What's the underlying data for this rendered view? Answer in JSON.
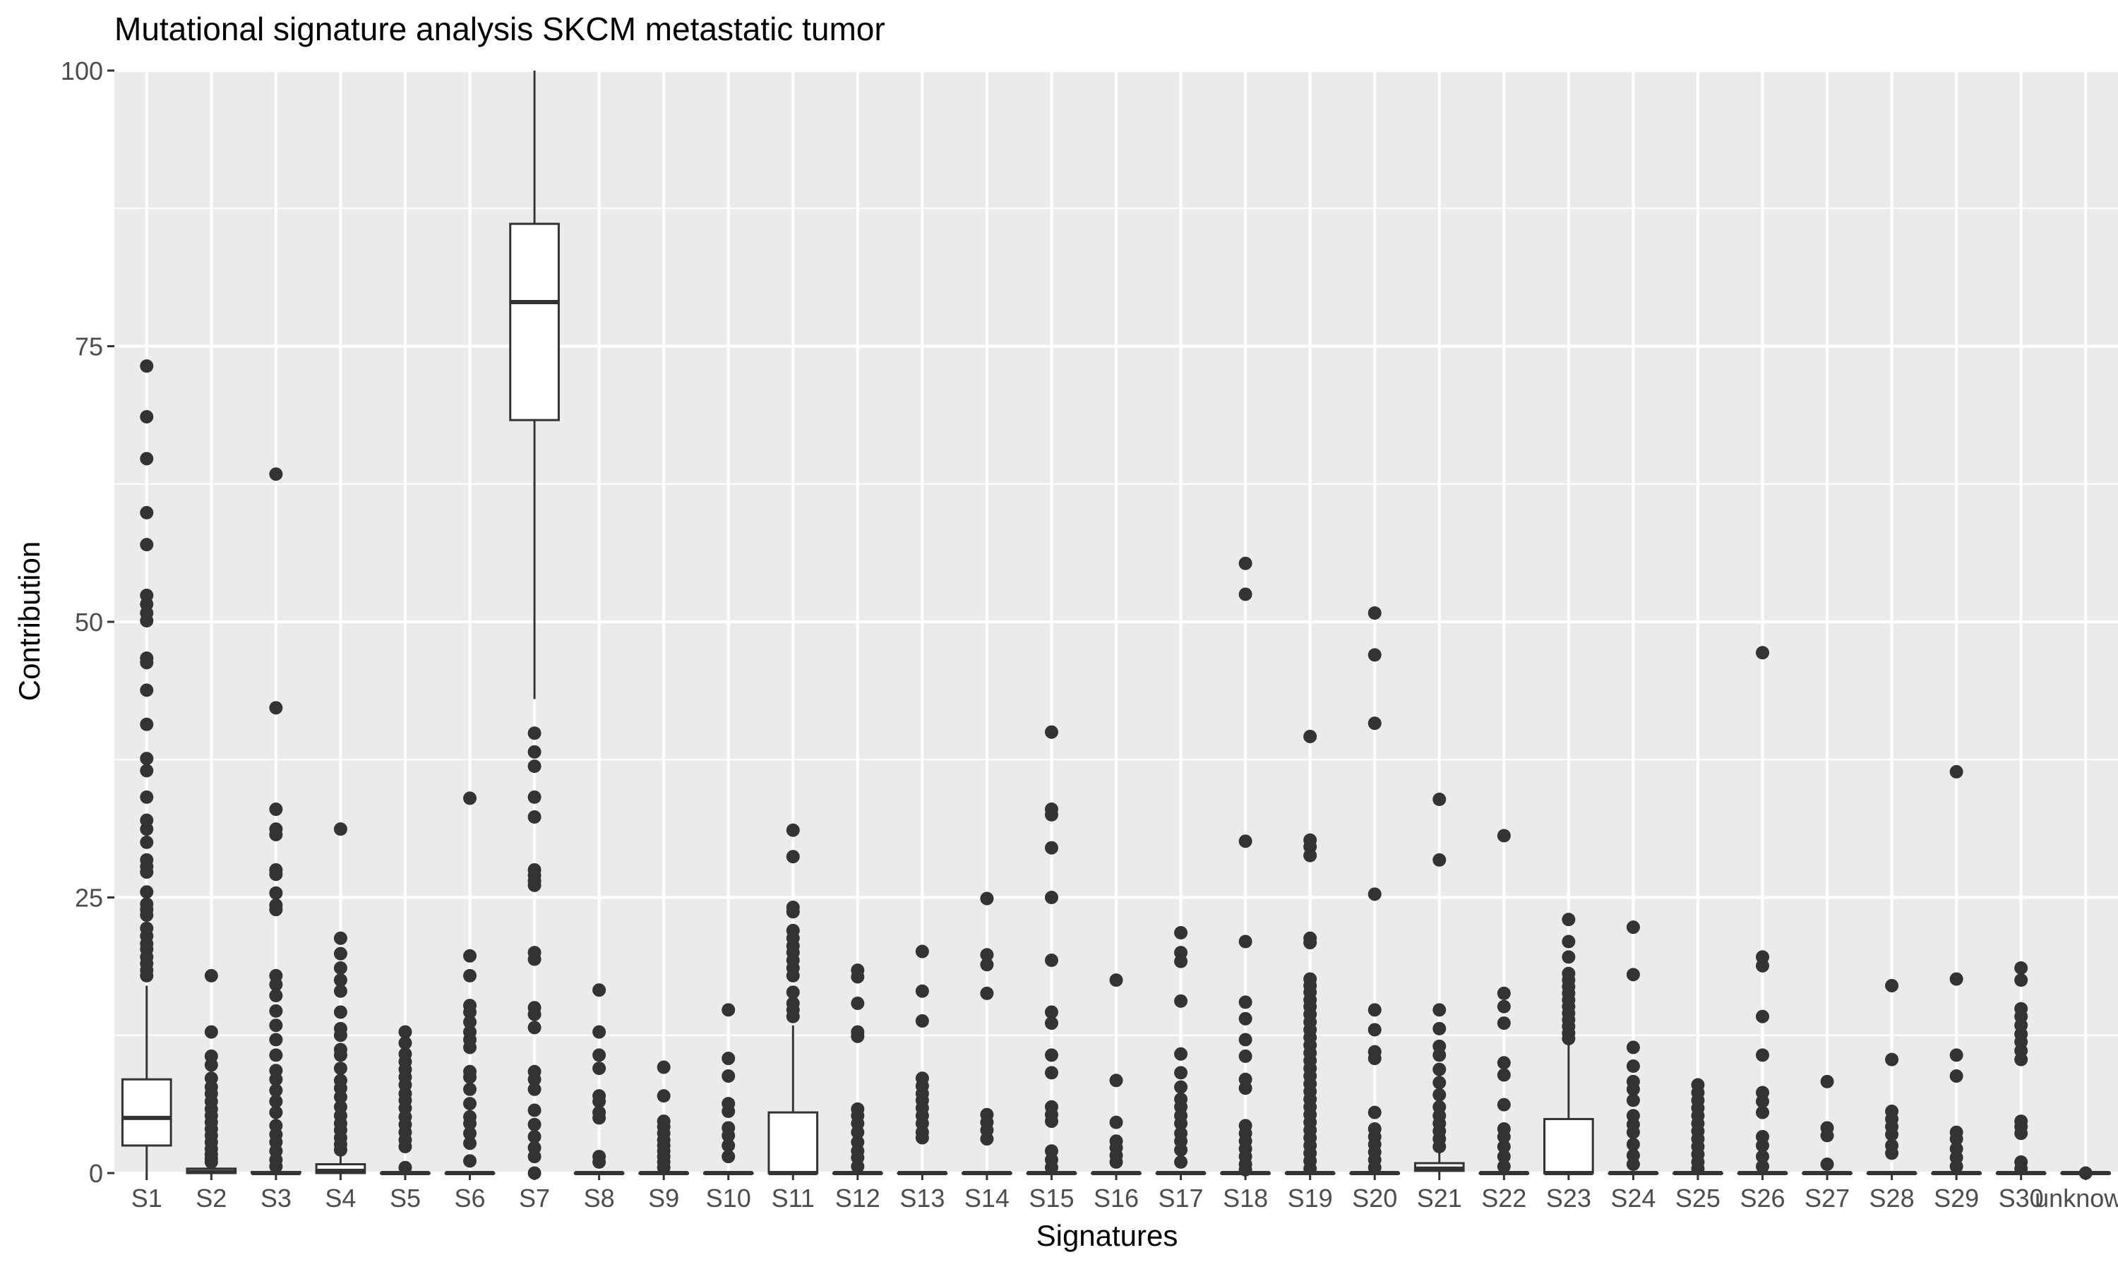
{
  "chart_data": {
    "type": "box",
    "title": "Mutational signature analysis SKCM metastatic tumor",
    "xlabel": "Signatures",
    "ylabel": "Contribution",
    "ylim": [
      0,
      100
    ],
    "yticks": [
      0,
      25,
      50,
      75,
      100
    ],
    "grid": true,
    "legend": "none",
    "colors": {
      "panel": "#ebebeb",
      "grid": "#ffffff",
      "box_fill": "#ffffff",
      "ink": "#333333",
      "text": "#000000",
      "tick_text": "#4d4d4d"
    },
    "categories": [
      "S1",
      "S2",
      "S3",
      "S4",
      "S5",
      "S6",
      "S7",
      "S8",
      "S9",
      "S10",
      "S11",
      "S12",
      "S13",
      "S14",
      "S15",
      "S16",
      "S17",
      "S18",
      "S19",
      "S20",
      "S21",
      "S22",
      "S23",
      "S24",
      "S25",
      "S26",
      "S27",
      "S28",
      "S29",
      "S30",
      "unknown"
    ],
    "boxes": [
      {
        "category": "S1",
        "q1": 2.5,
        "median": 5,
        "q3": 8.5,
        "whisker_low": 0,
        "whisker_high": 17,
        "outliers": [
          73.2,
          68.6,
          64.8,
          59.9,
          57,
          52.4,
          51.6,
          50.8,
          50.1,
          46.7,
          46.3,
          43.8,
          40.7,
          37.6,
          36.5,
          34.1,
          32,
          31.2,
          30,
          28.4,
          27.8,
          27.3,
          25.5,
          24.4,
          23.9,
          23.4,
          22.2,
          21.5,
          20.8,
          20.3,
          19.6,
          19,
          18.4,
          17.9
        ]
      },
      {
        "category": "S2",
        "q1": 0,
        "median": 0.1,
        "q3": 0.4,
        "whisker_low": 0,
        "whisker_high": 0.9,
        "outliers": [
          17.9,
          12.8,
          10.6,
          9.8,
          8.6,
          7.8,
          7.2,
          6.5,
          5.8,
          5.2,
          4.6,
          4,
          3.4,
          2.8,
          2.2,
          1.7,
          1.3,
          1
        ]
      },
      {
        "category": "S3",
        "q1": 0,
        "median": 0,
        "q3": 0.1,
        "whisker_low": 0,
        "whisker_high": 0.2,
        "outliers": [
          63.4,
          42.2,
          33,
          31.2,
          30.7,
          27.5,
          27.1,
          25.4,
          24.3,
          23.9,
          17.9,
          17.1,
          16.1,
          14.7,
          13.4,
          12.1,
          10.7,
          9.3,
          8.5,
          7.5,
          6.5,
          5.5,
          4.3,
          3.5,
          2.8,
          2,
          1.2,
          0.6
        ]
      },
      {
        "category": "S4",
        "q1": 0,
        "median": 0.2,
        "q3": 0.8,
        "whisker_low": 0,
        "whisker_high": 1.9,
        "outliers": [
          31.2,
          21.3,
          19.9,
          18.6,
          17.5,
          16.5,
          14.6,
          13.1,
          12.5,
          11.2,
          10.7,
          9.5,
          8.4,
          7.7,
          6.9,
          6,
          5.2,
          4.5,
          3.9,
          3.2,
          2.6,
          2.1
        ]
      },
      {
        "category": "S5",
        "q1": 0,
        "median": 0,
        "q3": 0,
        "whisker_low": 0,
        "whisker_high": 0,
        "outliers": [
          12.8,
          11.8,
          10.8,
          10.1,
          9.4,
          8.7,
          8,
          7.2,
          6.6,
          5.9,
          5.1,
          4.4,
          3.7,
          3,
          2.4,
          0.5
        ]
      },
      {
        "category": "S6",
        "q1": 0,
        "median": 0,
        "q3": 0,
        "whisker_low": 0,
        "whisker_high": 0,
        "outliers": [
          34,
          19.7,
          17.9,
          15.2,
          14.6,
          13.7,
          12.8,
          12.1,
          11.4,
          9.2,
          8.7,
          7.6,
          6.3,
          5.1,
          4.5,
          3.6,
          2.7,
          1.1
        ]
      },
      {
        "category": "S7",
        "q1": 68.3,
        "median": 79,
        "q3": 86.1,
        "whisker_low": 43,
        "whisker_high": 100,
        "outliers": [
          39.9,
          38.2,
          36.9,
          34.1,
          32.3,
          27.5,
          27,
          26.5,
          26.1,
          20,
          19.4,
          15,
          14.4,
          13.2,
          9.2,
          8.5,
          7.6,
          5.7,
          4.4,
          3.3,
          2.3,
          1.5,
          0
        ]
      },
      {
        "category": "S8",
        "q1": 0,
        "median": 0,
        "q3": 0,
        "whisker_low": 0,
        "whisker_high": 0,
        "outliers": [
          16.6,
          12.8,
          10.7,
          9.5,
          7,
          6.5,
          5.5,
          5,
          1.5,
          1
        ]
      },
      {
        "category": "S9",
        "q1": 0,
        "median": 0,
        "q3": 0,
        "whisker_low": 0,
        "whisker_high": 0,
        "outliers": [
          9.6,
          7,
          4.7,
          4.2,
          3.6,
          3,
          2.5,
          2,
          1.5,
          1,
          0.5
        ]
      },
      {
        "category": "S10",
        "q1": 0,
        "median": 0,
        "q3": 0,
        "whisker_low": 0,
        "whisker_high": 0,
        "outliers": [
          14.8,
          10.4,
          8.8,
          6.3,
          5.6,
          4.1,
          3.4,
          2.5,
          1.5
        ]
      },
      {
        "category": "S11",
        "q1": 0,
        "median": 0,
        "q3": 5.5,
        "whisker_low": 0,
        "whisker_high": 13.4,
        "outliers": [
          31.1,
          28.7,
          24.1,
          23.7,
          22,
          21.3,
          20.6,
          20,
          19.3,
          18.6,
          17.9,
          16.4,
          15.4,
          14.8,
          14.2
        ]
      },
      {
        "category": "S12",
        "q1": 0,
        "median": 0,
        "q3": 0,
        "whisker_low": 0,
        "whisker_high": 0,
        "outliers": [
          18.4,
          17.8,
          15.4,
          12.8,
          12.4,
          5.8,
          5.2,
          4.5,
          3.7,
          2.8,
          2,
          1.4,
          0.6
        ]
      },
      {
        "category": "S13",
        "q1": 0,
        "median": 0,
        "q3": 0,
        "whisker_low": 0,
        "whisker_high": 0,
        "outliers": [
          20.1,
          16.5,
          13.8,
          8.6,
          7.9,
          7.2,
          6.6,
          5.9,
          5.2,
          4.5,
          3.7,
          3.2
        ]
      },
      {
        "category": "S14",
        "q1": 0,
        "median": 0,
        "q3": 0,
        "whisker_low": 0,
        "whisker_high": 0,
        "outliers": [
          24.9,
          19.8,
          18.9,
          16.3,
          5.3,
          4.6,
          3.9,
          3.1
        ]
      },
      {
        "category": "S15",
        "q1": 0,
        "median": 0,
        "q3": 0,
        "whisker_low": 0,
        "whisker_high": 0,
        "outliers": [
          40,
          33,
          32.5,
          29.5,
          25,
          19.3,
          14.6,
          13.6,
          10.7,
          9.1,
          6,
          5.3,
          4.7,
          2,
          1.2,
          0.5
        ]
      },
      {
        "category": "S16",
        "q1": 0,
        "median": 0,
        "q3": 0,
        "whisker_low": 0,
        "whisker_high": 0,
        "outliers": [
          17.5,
          8.4,
          4.6,
          2.9,
          2.3,
          1.6,
          1
        ]
      },
      {
        "category": "S17",
        "q1": 0,
        "median": 0,
        "q3": 0,
        "whisker_low": 0,
        "whisker_high": 0,
        "outliers": [
          21.8,
          20,
          19.2,
          15.6,
          10.8,
          9.1,
          7.8,
          6.7,
          6,
          5.2,
          4.5,
          3.6,
          2.9,
          2.1,
          1
        ]
      },
      {
        "category": "S18",
        "q1": 0,
        "median": 0,
        "q3": 0,
        "whisker_low": 0,
        "whisker_high": 0,
        "outliers": [
          55.3,
          52.5,
          30.1,
          21,
          15.5,
          14,
          12.1,
          10.6,
          8.5,
          7.7,
          4.3,
          3.6,
          2.9,
          2.2,
          1.5,
          0.8,
          0.3
        ]
      },
      {
        "category": "S19",
        "q1": 0,
        "median": 0,
        "q3": 0,
        "whisker_low": 0,
        "whisker_high": 0,
        "outliers": [
          39.6,
          30.2,
          29.6,
          28.8,
          21.3,
          20.9,
          17.6,
          17,
          16.4,
          15.7,
          15.1,
          14.4,
          13.7,
          13,
          12.3,
          11.6,
          10.9,
          10.2,
          9.5,
          8.8,
          8.1,
          7.4,
          6.7,
          6,
          5.3,
          4.6,
          3.9,
          3.2,
          2.5,
          1.8,
          1.1,
          0.4
        ]
      },
      {
        "category": "S20",
        "q1": 0,
        "median": 0,
        "q3": 0,
        "whisker_low": 0,
        "whisker_high": 0,
        "outliers": [
          50.8,
          47,
          40.8,
          25.3,
          14.8,
          13,
          11,
          10.4,
          5.5,
          4,
          3.3,
          2.6,
          1.9,
          1.2,
          0.5
        ]
      },
      {
        "category": "S21",
        "q1": 0.2,
        "median": 0.4,
        "q3": 0.9,
        "whisker_low": 0,
        "whisker_high": 2,
        "outliers": [
          33.9,
          28.4,
          14.8,
          13.1,
          11.5,
          10.7,
          9.4,
          8.2,
          7.1,
          6,
          5.2,
          4.5,
          3.8,
          3.1,
          2.4
        ]
      },
      {
        "category": "S22",
        "q1": 0,
        "median": 0,
        "q3": 0,
        "whisker_low": 0,
        "whisker_high": 0,
        "outliers": [
          30.6,
          16.3,
          15.1,
          13.6,
          10,
          8.9,
          6.2,
          4,
          3.3,
          2.4,
          1.5,
          0.6
        ]
      },
      {
        "category": "S23",
        "q1": 0,
        "median": 0,
        "q3": 4.9,
        "whisker_low": 0,
        "whisker_high": 11.9,
        "outliers": [
          23,
          21,
          19.6,
          18.1,
          17.5,
          16.9,
          16.3,
          15.7,
          15.1,
          14.5,
          13.9,
          13.3,
          12.7,
          12.2
        ]
      },
      {
        "category": "S24",
        "q1": 0,
        "median": 0,
        "q3": 0,
        "whisker_low": 0,
        "whisker_high": 0,
        "outliers": [
          22.3,
          18,
          11.4,
          9.7,
          8.3,
          7.6,
          6.6,
          5.2,
          4.4,
          3.7,
          2.6,
          1.6,
          0.8
        ]
      },
      {
        "category": "S25",
        "q1": 0,
        "median": 0,
        "q3": 0,
        "whisker_low": 0,
        "whisker_high": 0,
        "outliers": [
          8,
          7.3,
          6.6,
          5.9,
          5.2,
          4.5,
          3.8,
          3.1,
          2.4,
          1.7,
          1,
          0.4
        ]
      },
      {
        "category": "S26",
        "q1": 0,
        "median": 0,
        "q3": 0,
        "whisker_low": 0,
        "whisker_high": 0,
        "outliers": [
          47.2,
          19.6,
          18.8,
          14.2,
          10.7,
          7.3,
          6.5,
          5.5,
          3.3,
          2.5,
          1.5,
          0.6
        ]
      },
      {
        "category": "S27",
        "q1": 0,
        "median": 0,
        "q3": 0,
        "whisker_low": 0,
        "whisker_high": 0,
        "outliers": [
          8.3,
          4.1,
          3.4,
          0.8
        ]
      },
      {
        "category": "S28",
        "q1": 0,
        "median": 0,
        "q3": 0,
        "whisker_low": 0,
        "whisker_high": 0,
        "outliers": [
          17,
          10.3,
          5.6,
          4.9,
          4.2,
          3.5,
          2.5,
          1.8
        ]
      },
      {
        "category": "S29",
        "q1": 0,
        "median": 0,
        "q3": 0,
        "whisker_low": 0,
        "whisker_high": 0,
        "outliers": [
          36.4,
          17.6,
          10.7,
          8.8,
          3.7,
          3.1,
          2.2,
          1.4,
          0.6
        ]
      },
      {
        "category": "S30",
        "q1": 0,
        "median": 0,
        "q3": 0,
        "whisker_low": 0,
        "whisker_high": 0,
        "outliers": [
          18.6,
          17.5,
          14.9,
          14.2,
          13.4,
          12.6,
          11.9,
          11.1,
          10.3,
          4.7,
          4.2,
          3.6,
          1,
          0.4
        ]
      },
      {
        "category": "unknown",
        "q1": 0,
        "median": 0,
        "q3": 0,
        "whisker_low": 0,
        "whisker_high": 0,
        "outliers": [
          0
        ]
      }
    ]
  }
}
